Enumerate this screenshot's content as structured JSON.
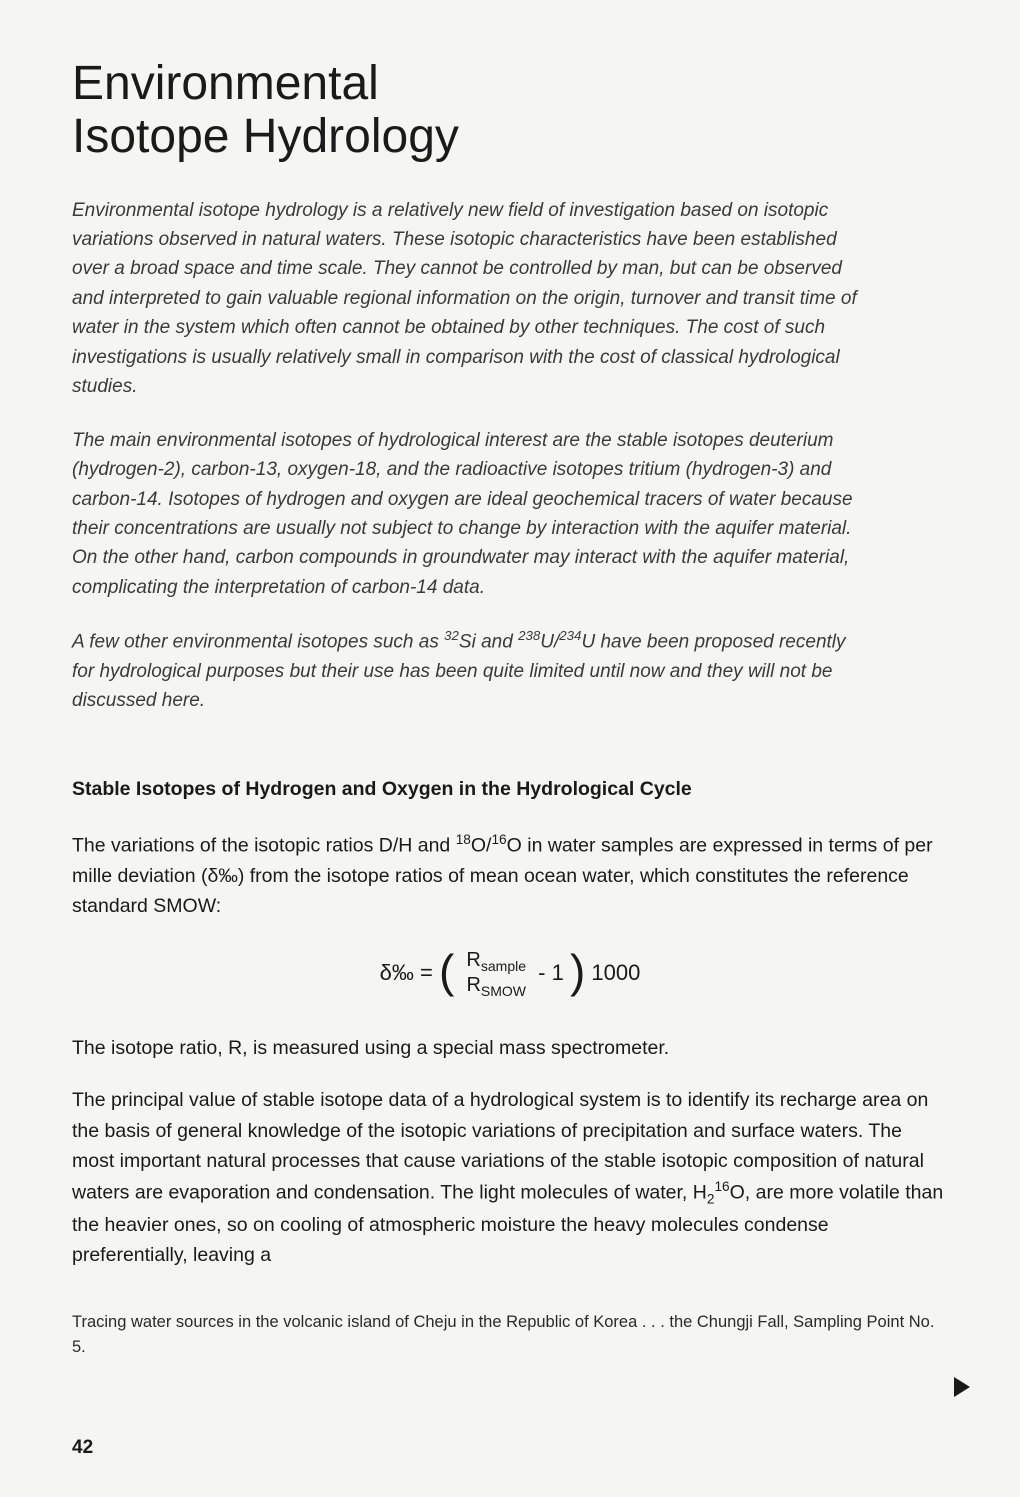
{
  "title_line1": "Environmental",
  "title_line2": "Isotope Hydrology",
  "intro": {
    "p1": "Environmental isotope hydrology is a relatively new field of investigation based on isotopic variations observed in natural waters. These isotopic characteristics have been established over a broad space and time scale. They cannot be controlled by man, but can be observed and interpreted to gain valuable regional information on the origin, turnover and transit time of water in the system which often cannot be obtained by other techniques. The cost of such investigations is usually relatively small in comparison with the cost of classical hydrological studies.",
    "p2": "The main environmental isotopes of hydrological interest are the stable isotopes deuterium (hydrogen-2), carbon-13, oxygen-18, and the radioactive isotopes tritium (hydrogen-3) and carbon-14. Isotopes of hydrogen and oxygen are ideal geochemical tracers of water because their concentrations are usually not subject to change by interaction with the aquifer material. On the other hand, carbon compounds in groundwater may interact with the aquifer material, complicating the interpretation of carbon-14 data.",
    "p3_a": "A few other environmental isotopes such as ",
    "p3_b": " have been proposed recently for hydrological purposes but their use has been quite limited until now and they will not be discussed here."
  },
  "section_heading": "Stable Isotopes of Hydrogen and Oxygen in the Hydrological Cycle",
  "body": {
    "p1_a": "The variations of the isotopic ratios D/H and ",
    "p1_b": " in water samples are expressed in terms of per mille deviation (δ‰) from the isotope ratios of mean ocean water, which constitutes the reference standard SMOW:",
    "p2": "The isotope ratio, R, is measured using a special mass spectrometer.",
    "p3_a": "The principal value of stable isotope data of a hydrological system is to identify its recharge area on the basis of general knowledge of the isotopic variations of precipitation and surface waters. The most important natural processes that cause variations of the stable isotopic composition of natural waters are evaporation and condensation. The light molecules of water, H",
    "p3_b": "O, are more volatile than the heavier ones, so on cooling of atmospheric moisture the heavy molecules condense preferentially, leaving a"
  },
  "formula": {
    "lhs": "δ‰ =",
    "num_base": "R",
    "num_sub": "sample",
    "den_base": "R",
    "den_sub": "SMOW",
    "minus": " - 1",
    "mult": " 1000"
  },
  "isotopes": {
    "si32_sup": "32",
    "si32_el": "Si and ",
    "u238_sup": "238",
    "u238_el": "U/",
    "u234_sup": "234",
    "u234_el": "U",
    "o18_sup": "18",
    "o18_el": "O/",
    "o16_sup": "16",
    "o16_el": "O",
    "h2_sub": "2",
    "h2o16_sup": "16"
  },
  "caption": "Tracing water sources in the volcanic island of Cheju in the Republic of Korea . . . the Chungji Fall, Sampling Point No. 5.",
  "page_number": "42",
  "colors": {
    "background": "#f5f5f2",
    "text": "#2a2a2a",
    "heading": "#1a1a1a"
  }
}
